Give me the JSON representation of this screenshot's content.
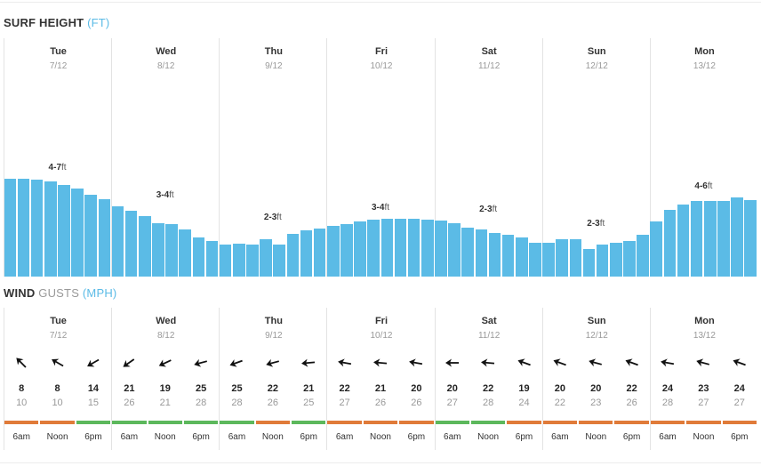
{
  "surf": {
    "title": "SURF HEIGHT",
    "unit": "(FT)",
    "heights": [
      1.0,
      1.0,
      0.99,
      0.97,
      0.94,
      0.9,
      0.84,
      0.79,
      0.72,
      0.67,
      0.62,
      0.55,
      0.54,
      0.48,
      0.4,
      0.36,
      0.33,
      0.34,
      0.33,
      0.38,
      0.33,
      0.44,
      0.47,
      0.49,
      0.52,
      0.54,
      0.56,
      0.58,
      0.59,
      0.59,
      0.59,
      0.58,
      0.57,
      0.55,
      0.5,
      0.48,
      0.45,
      0.43,
      0.4,
      0.35,
      0.35,
      0.38,
      0.38,
      0.28,
      0.33,
      0.35,
      0.36,
      0.43,
      0.56,
      0.68,
      0.74,
      0.77,
      0.77,
      0.77,
      0.81,
      0.78
    ],
    "labels": [
      {
        "day": 0,
        "main": "4-7",
        "unit": "ft"
      },
      {
        "day": 1,
        "main": "3-4",
        "unit": "ft"
      },
      {
        "day": 2,
        "main": "2-3",
        "unit": "ft"
      },
      {
        "day": 3,
        "main": "3-4",
        "unit": "ft"
      },
      {
        "day": 4,
        "main": "2-3",
        "unit": "ft"
      },
      {
        "day": 5,
        "main": "2-3",
        "unit": "ft"
      },
      {
        "day": 6,
        "main": "4-6",
        "unit": "ft"
      }
    ]
  },
  "wind": {
    "title": "WIND",
    "sub": "GUSTS",
    "unit": "(MPH)",
    "slots": [
      {
        "speed": "8",
        "gust": "10",
        "time": "6am",
        "dir": 225,
        "color": "#e07b39"
      },
      {
        "speed": "8",
        "gust": "10",
        "time": "Noon",
        "dir": 210,
        "color": "#e07b39"
      },
      {
        "speed": "14",
        "gust": "15",
        "time": "6pm",
        "dir": 150,
        "color": "#5cb85c"
      },
      {
        "speed": "21",
        "gust": "26",
        "time": "6am",
        "dir": 145,
        "color": "#5cb85c"
      },
      {
        "speed": "19",
        "gust": "21",
        "time": "Noon",
        "dir": 155,
        "color": "#5cb85c"
      },
      {
        "speed": "25",
        "gust": "28",
        "time": "6pm",
        "dir": 165,
        "color": "#5cb85c"
      },
      {
        "speed": "25",
        "gust": "28",
        "time": "6am",
        "dir": 160,
        "color": "#5cb85c"
      },
      {
        "speed": "22",
        "gust": "26",
        "time": "Noon",
        "dir": 165,
        "color": "#e07b39"
      },
      {
        "speed": "21",
        "gust": "25",
        "time": "6pm",
        "dir": 175,
        "color": "#5cb85c"
      },
      {
        "speed": "22",
        "gust": "27",
        "time": "6am",
        "dir": 190,
        "color": "#e07b39"
      },
      {
        "speed": "21",
        "gust": "26",
        "time": "Noon",
        "dir": 185,
        "color": "#e07b39"
      },
      {
        "speed": "20",
        "gust": "26",
        "time": "6pm",
        "dir": 190,
        "color": "#e07b39"
      },
      {
        "speed": "20",
        "gust": "27",
        "time": "6am",
        "dir": 180,
        "color": "#5cb85c"
      },
      {
        "speed": "22",
        "gust": "28",
        "time": "Noon",
        "dir": 185,
        "color": "#5cb85c"
      },
      {
        "speed": "19",
        "gust": "24",
        "time": "6pm",
        "dir": 200,
        "color": "#e07b39"
      },
      {
        "speed": "20",
        "gust": "22",
        "time": "6am",
        "dir": 200,
        "color": "#e07b39"
      },
      {
        "speed": "20",
        "gust": "23",
        "time": "Noon",
        "dir": 195,
        "color": "#e07b39"
      },
      {
        "speed": "22",
        "gust": "26",
        "time": "6pm",
        "dir": 200,
        "color": "#e07b39"
      },
      {
        "speed": "24",
        "gust": "28",
        "time": "6am",
        "dir": 190,
        "color": "#e07b39"
      },
      {
        "speed": "23",
        "gust": "27",
        "time": "Noon",
        "dir": 195,
        "color": "#e07b39"
      },
      {
        "speed": "24",
        "gust": "27",
        "time": "6pm",
        "dir": 200,
        "color": "#e07b39"
      }
    ]
  },
  "days": [
    {
      "name": "Tue",
      "date": "7/12"
    },
    {
      "name": "Wed",
      "date": "8/12"
    },
    {
      "name": "Thu",
      "date": "9/12"
    },
    {
      "name": "Fri",
      "date": "10/12"
    },
    {
      "name": "Sat",
      "date": "11/12"
    },
    {
      "name": "Sun",
      "date": "12/12"
    },
    {
      "name": "Mon",
      "date": "13/12"
    }
  ],
  "colors": {
    "bar": "#5bbbe6",
    "unit": "#5bbbe6"
  }
}
